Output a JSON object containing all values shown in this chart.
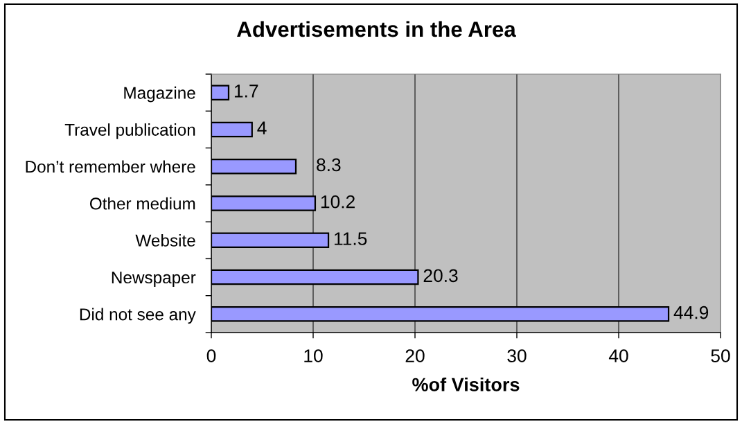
{
  "chart_data": {
    "type": "bar",
    "orientation": "horizontal",
    "title": "Advertisements in the Area",
    "xlabel": "%of Visitors",
    "categories": [
      "Magazine",
      "Travel publication",
      "Don’t remember where",
      "Other medium",
      "Website",
      "Newspaper",
      "Did not see any"
    ],
    "values": [
      1.7,
      4,
      8.3,
      10.2,
      11.5,
      20.3,
      44.9
    ],
    "color": "#9999ff",
    "xlim": [
      0,
      50
    ],
    "xticks": [
      0,
      10,
      20,
      30,
      40,
      50
    ],
    "grid": "x",
    "data_labels": true,
    "legend": false
  }
}
